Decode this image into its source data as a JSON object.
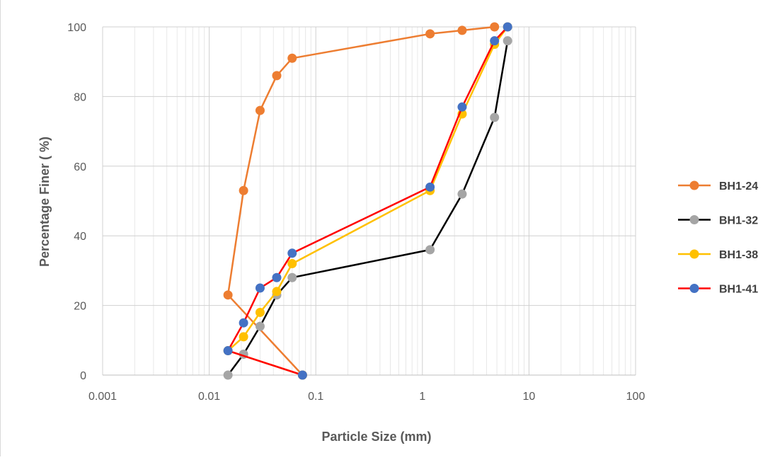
{
  "chart_data": {
    "type": "scatter",
    "title": "",
    "xlabel": "Particle Size (mm)",
    "ylabel": "Percentage Finer ( %)",
    "x_scale": "log",
    "xlim": [
      0.001,
      100
    ],
    "ylim": [
      0,
      100
    ],
    "x_ticks": [
      {
        "value": 0.001,
        "label": "0.001"
      },
      {
        "value": 0.01,
        "label": "0.01"
      },
      {
        "value": 0.1,
        "label": "0.1"
      },
      {
        "value": 1,
        "label": "1"
      },
      {
        "value": 10,
        "label": "10"
      },
      {
        "value": 100,
        "label": "100"
      }
    ],
    "y_ticks": [
      {
        "value": 0,
        "label": "0"
      },
      {
        "value": 20,
        "label": "20"
      },
      {
        "value": 40,
        "label": "40"
      },
      {
        "value": 60,
        "label": "60"
      },
      {
        "value": 80,
        "label": "80"
      },
      {
        "value": 100,
        "label": "100"
      }
    ],
    "grid": true,
    "legend_position": "right",
    "marker_color": "#4472C4",
    "series": [
      {
        "name": "BH1-24",
        "color": "#ED7D31",
        "marker_color": "#ED7D31",
        "points": [
          [
            4.75,
            100
          ],
          [
            2.36,
            99
          ],
          [
            1.18,
            98
          ],
          [
            0.06,
            91
          ],
          [
            0.043,
            86
          ],
          [
            0.03,
            76
          ],
          [
            0.021,
            53
          ],
          [
            0.015,
            23
          ],
          [
            0.075,
            0
          ]
        ]
      },
      {
        "name": "BH1-32",
        "color": "#000000",
        "marker_color": "#A5A5A5",
        "points": [
          [
            6.3,
            96
          ],
          [
            4.75,
            74
          ],
          [
            2.36,
            52
          ],
          [
            1.18,
            36
          ],
          [
            0.06,
            28
          ],
          [
            0.043,
            23
          ],
          [
            0.03,
            14
          ],
          [
            0.021,
            6
          ],
          [
            0.015,
            0
          ]
        ]
      },
      {
        "name": "BH1-38",
        "color": "#FFC000",
        "marker_color": "#FFC000",
        "points": [
          [
            6.3,
            100
          ],
          [
            4.75,
            95
          ],
          [
            2.36,
            75
          ],
          [
            1.18,
            53
          ],
          [
            0.06,
            32
          ],
          [
            0.043,
            24
          ],
          [
            0.03,
            18
          ],
          [
            0.021,
            11
          ],
          [
            0.015,
            7
          ],
          [
            0.075,
            0
          ]
        ]
      },
      {
        "name": "BH1-41",
        "color": "#FF0000",
        "marker_color": "#4472C4",
        "points": [
          [
            6.3,
            100
          ],
          [
            4.75,
            96
          ],
          [
            2.36,
            77
          ],
          [
            1.18,
            54
          ],
          [
            0.06,
            35
          ],
          [
            0.043,
            28
          ],
          [
            0.03,
            25
          ],
          [
            0.021,
            15
          ],
          [
            0.015,
            7
          ],
          [
            0.075,
            0
          ]
        ]
      }
    ]
  }
}
